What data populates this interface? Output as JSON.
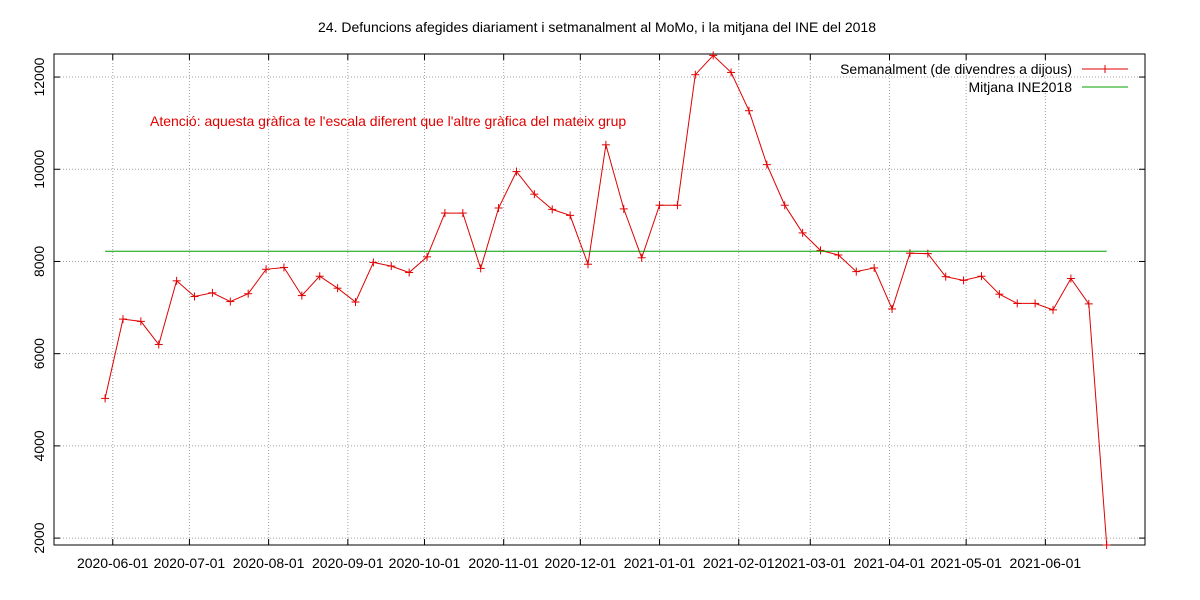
{
  "chart_data": {
    "type": "line",
    "title": "24. Defuncions afegides diariament i setmanalment al MoMo, i la mitjana del INE del 2018",
    "annotation": "Atenció: aquesta gràfica te l'escala diferent que l'altre gràfica del mateix grup",
    "annotation_color": "#e00000",
    "xlabel": "",
    "ylabel": "",
    "x_range": [
      "2020-05-09",
      "2021-07-10"
    ],
    "ylim": [
      1850,
      12500
    ],
    "y_ticks": [
      2000,
      4000,
      6000,
      8000,
      10000,
      12000
    ],
    "x_ticks": [
      "2020-06-01",
      "2020-07-01",
      "2020-08-01",
      "2020-09-01",
      "2020-10-01",
      "2020-11-01",
      "2020-12-01",
      "2021-01-01",
      "2021-02-01",
      "2021-03-01",
      "2021-04-01",
      "2021-05-01",
      "2021-06-01"
    ],
    "grid": true,
    "legend_position": "top-right",
    "series": [
      {
        "name": "Semanalment (de divendres a dijous)",
        "color": "#e00000",
        "marker": "plus",
        "x": [
          "2020-05-29",
          "2020-06-05",
          "2020-06-12",
          "2020-06-19",
          "2020-06-26",
          "2020-07-03",
          "2020-07-10",
          "2020-07-17",
          "2020-07-24",
          "2020-07-31",
          "2020-08-07",
          "2020-08-14",
          "2020-08-21",
          "2020-08-28",
          "2020-09-04",
          "2020-09-11",
          "2020-09-18",
          "2020-09-25",
          "2020-10-02",
          "2020-10-09",
          "2020-10-16",
          "2020-10-23",
          "2020-10-30",
          "2020-11-06",
          "2020-11-13",
          "2020-11-20",
          "2020-11-27",
          "2020-12-04",
          "2020-12-11",
          "2020-12-18",
          "2020-12-25",
          "2021-01-01",
          "2021-01-08",
          "2021-01-15",
          "2021-01-22",
          "2021-01-29",
          "2021-02-05",
          "2021-02-12",
          "2021-02-19",
          "2021-02-26",
          "2021-03-05",
          "2021-03-12",
          "2021-03-19",
          "2021-03-26",
          "2021-04-02",
          "2021-04-09",
          "2021-04-16",
          "2021-04-23",
          "2021-04-30",
          "2021-05-07",
          "2021-05-14",
          "2021-05-21",
          "2021-05-28",
          "2021-06-04",
          "2021-06-11",
          "2021-06-18",
          "2021-06-25"
        ],
        "values": [
          5030,
          6750,
          6700,
          6200,
          7580,
          7240,
          7320,
          7130,
          7300,
          7830,
          7870,
          7260,
          7680,
          7420,
          7120,
          7980,
          7900,
          7760,
          8100,
          9050,
          9050,
          7850,
          9160,
          9950,
          9460,
          9130,
          9000,
          7940,
          10530,
          9140,
          8080,
          9220,
          9220,
          12050,
          12470,
          12100,
          11270,
          10100,
          9220,
          8620,
          8240,
          8140,
          7780,
          7860,
          6970,
          8180,
          8170,
          7670,
          7590,
          7680,
          7290,
          7090,
          7090,
          6950,
          7630,
          7080,
          1850
        ]
      },
      {
        "name": "Mitjana INE2018",
        "color": "#00a000",
        "x": [
          "2020-05-29",
          "2021-06-25"
        ],
        "values": [
          8220,
          8220
        ]
      }
    ]
  }
}
